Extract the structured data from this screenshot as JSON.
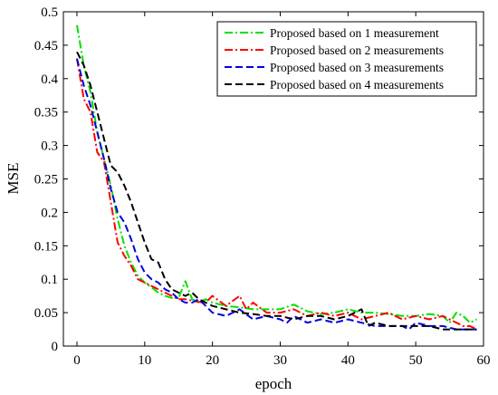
{
  "chart_data": {
    "type": "line",
    "title": "",
    "xlabel": "epoch",
    "ylabel": "MSE",
    "xlim": [
      -2,
      60
    ],
    "ylim": [
      0,
      0.5
    ],
    "xticks": [
      "0",
      "10",
      "20",
      "30",
      "40",
      "50",
      "60"
    ],
    "yticks": [
      "0",
      "0.05",
      "0.1",
      "0.15",
      "0.2",
      "0.25",
      "0.3",
      "0.35",
      "0.4",
      "0.45",
      "0.5"
    ],
    "grid": false,
    "legend_position": "top-right",
    "series": [
      {
        "name": "Proposed based on 1 measurement",
        "color": "#00e000",
        "dash": "dash-dot",
        "points": [
          [
            0,
            0.48
          ],
          [
            1,
            0.42
          ],
          [
            2,
            0.38
          ],
          [
            3,
            0.32
          ],
          [
            4,
            0.28
          ],
          [
            5,
            0.24
          ],
          [
            6,
            0.19
          ],
          [
            7,
            0.15
          ],
          [
            8,
            0.125
          ],
          [
            9,
            0.105
          ],
          [
            10,
            0.095
          ],
          [
            11,
            0.088
          ],
          [
            12,
            0.08
          ],
          [
            13,
            0.075
          ],
          [
            14,
            0.072
          ],
          [
            15,
            0.072
          ],
          [
            16,
            0.097
          ],
          [
            17,
            0.07
          ],
          [
            18,
            0.065
          ],
          [
            19,
            0.07
          ],
          [
            20,
            0.065
          ],
          [
            22,
            0.06
          ],
          [
            24,
            0.058
          ],
          [
            26,
            0.055
          ],
          [
            28,
            0.055
          ],
          [
            30,
            0.055
          ],
          [
            32,
            0.062
          ],
          [
            34,
            0.052
          ],
          [
            36,
            0.048
          ],
          [
            38,
            0.05
          ],
          [
            40,
            0.055
          ],
          [
            42,
            0.05
          ],
          [
            44,
            0.05
          ],
          [
            46,
            0.048
          ],
          [
            48,
            0.045
          ],
          [
            50,
            0.045
          ],
          [
            52,
            0.048
          ],
          [
            54,
            0.045
          ],
          [
            55,
            0.035
          ],
          [
            56,
            0.05
          ],
          [
            57,
            0.045
          ],
          [
            58,
            0.035
          ],
          [
            59,
            0.04
          ]
        ]
      },
      {
        "name": "Proposed based on 2 measurements",
        "color": "#ff0000",
        "dash": "dash-dot",
        "points": [
          [
            0,
            0.43
          ],
          [
            1,
            0.37
          ],
          [
            2,
            0.35
          ],
          [
            3,
            0.29
          ],
          [
            4,
            0.275
          ],
          [
            5,
            0.215
          ],
          [
            6,
            0.155
          ],
          [
            7,
            0.135
          ],
          [
            8,
            0.12
          ],
          [
            9,
            0.1
          ],
          [
            10,
            0.095
          ],
          [
            11,
            0.09
          ],
          [
            12,
            0.085
          ],
          [
            13,
            0.08
          ],
          [
            14,
            0.075
          ],
          [
            15,
            0.07
          ],
          [
            16,
            0.07
          ],
          [
            17,
            0.068
          ],
          [
            18,
            0.066
          ],
          [
            19,
            0.065
          ],
          [
            20,
            0.075
          ],
          [
            22,
            0.06
          ],
          [
            24,
            0.075
          ],
          [
            25,
            0.055
          ],
          [
            26,
            0.065
          ],
          [
            28,
            0.05
          ],
          [
            30,
            0.05
          ],
          [
            32,
            0.055
          ],
          [
            34,
            0.045
          ],
          [
            36,
            0.05
          ],
          [
            38,
            0.045
          ],
          [
            40,
            0.05
          ],
          [
            42,
            0.04
          ],
          [
            44,
            0.045
          ],
          [
            46,
            0.05
          ],
          [
            48,
            0.04
          ],
          [
            50,
            0.045
          ],
          [
            52,
            0.04
          ],
          [
            54,
            0.045
          ],
          [
            56,
            0.035
          ],
          [
            57,
            0.03
          ],
          [
            58,
            0.03
          ],
          [
            59,
            0.025
          ]
        ]
      },
      {
        "name": "Proposed based on 3 measurements",
        "color": "#0000e0",
        "dash": "dashed",
        "points": [
          [
            0,
            0.43
          ],
          [
            1,
            0.39
          ],
          [
            2,
            0.36
          ],
          [
            3,
            0.32
          ],
          [
            4,
            0.28
          ],
          [
            5,
            0.235
          ],
          [
            6,
            0.2
          ],
          [
            7,
            0.185
          ],
          [
            8,
            0.16
          ],
          [
            9,
            0.13
          ],
          [
            10,
            0.11
          ],
          [
            11,
            0.1
          ],
          [
            12,
            0.095
          ],
          [
            13,
            0.085
          ],
          [
            14,
            0.08
          ],
          [
            15,
            0.07
          ],
          [
            16,
            0.065
          ],
          [
            17,
            0.065
          ],
          [
            18,
            0.07
          ],
          [
            19,
            0.06
          ],
          [
            20,
            0.05
          ],
          [
            22,
            0.045
          ],
          [
            24,
            0.055
          ],
          [
            26,
            0.04
          ],
          [
            28,
            0.045
          ],
          [
            30,
            0.04
          ],
          [
            31,
            0.035
          ],
          [
            32,
            0.045
          ],
          [
            34,
            0.035
          ],
          [
            36,
            0.04
          ],
          [
            38,
            0.035
          ],
          [
            40,
            0.04
          ],
          [
            42,
            0.035
          ],
          [
            44,
            0.03
          ],
          [
            46,
            0.03
          ],
          [
            48,
            0.03
          ],
          [
            49,
            0.025
          ],
          [
            50,
            0.035
          ],
          [
            52,
            0.03
          ],
          [
            54,
            0.03
          ],
          [
            56,
            0.025
          ],
          [
            58,
            0.025
          ],
          [
            59,
            0.025
          ]
        ]
      },
      {
        "name": "Proposed based on 4 measurements",
        "color": "#000000",
        "dash": "dashed",
        "points": [
          [
            0,
            0.44
          ],
          [
            1,
            0.42
          ],
          [
            2,
            0.39
          ],
          [
            3,
            0.35
          ],
          [
            4,
            0.31
          ],
          [
            5,
            0.27
          ],
          [
            6,
            0.26
          ],
          [
            7,
            0.24
          ],
          [
            8,
            0.215
          ],
          [
            9,
            0.185
          ],
          [
            10,
            0.155
          ],
          [
            11,
            0.13
          ],
          [
            12,
            0.125
          ],
          [
            13,
            0.1
          ],
          [
            14,
            0.085
          ],
          [
            15,
            0.08
          ],
          [
            16,
            0.075
          ],
          [
            17,
            0.08
          ],
          [
            18,
            0.07
          ],
          [
            19,
            0.065
          ],
          [
            20,
            0.06
          ],
          [
            22,
            0.055
          ],
          [
            24,
            0.05
          ],
          [
            26,
            0.048
          ],
          [
            28,
            0.045
          ],
          [
            30,
            0.045
          ],
          [
            32,
            0.04
          ],
          [
            34,
            0.045
          ],
          [
            36,
            0.045
          ],
          [
            38,
            0.04
          ],
          [
            40,
            0.045
          ],
          [
            42,
            0.055
          ],
          [
            43,
            0.03
          ],
          [
            44,
            0.035
          ],
          [
            46,
            0.03
          ],
          [
            48,
            0.03
          ],
          [
            50,
            0.03
          ],
          [
            52,
            0.03
          ],
          [
            54,
            0.025
          ],
          [
            56,
            0.025
          ],
          [
            58,
            0.025
          ],
          [
            59,
            0.025
          ]
        ]
      }
    ]
  }
}
